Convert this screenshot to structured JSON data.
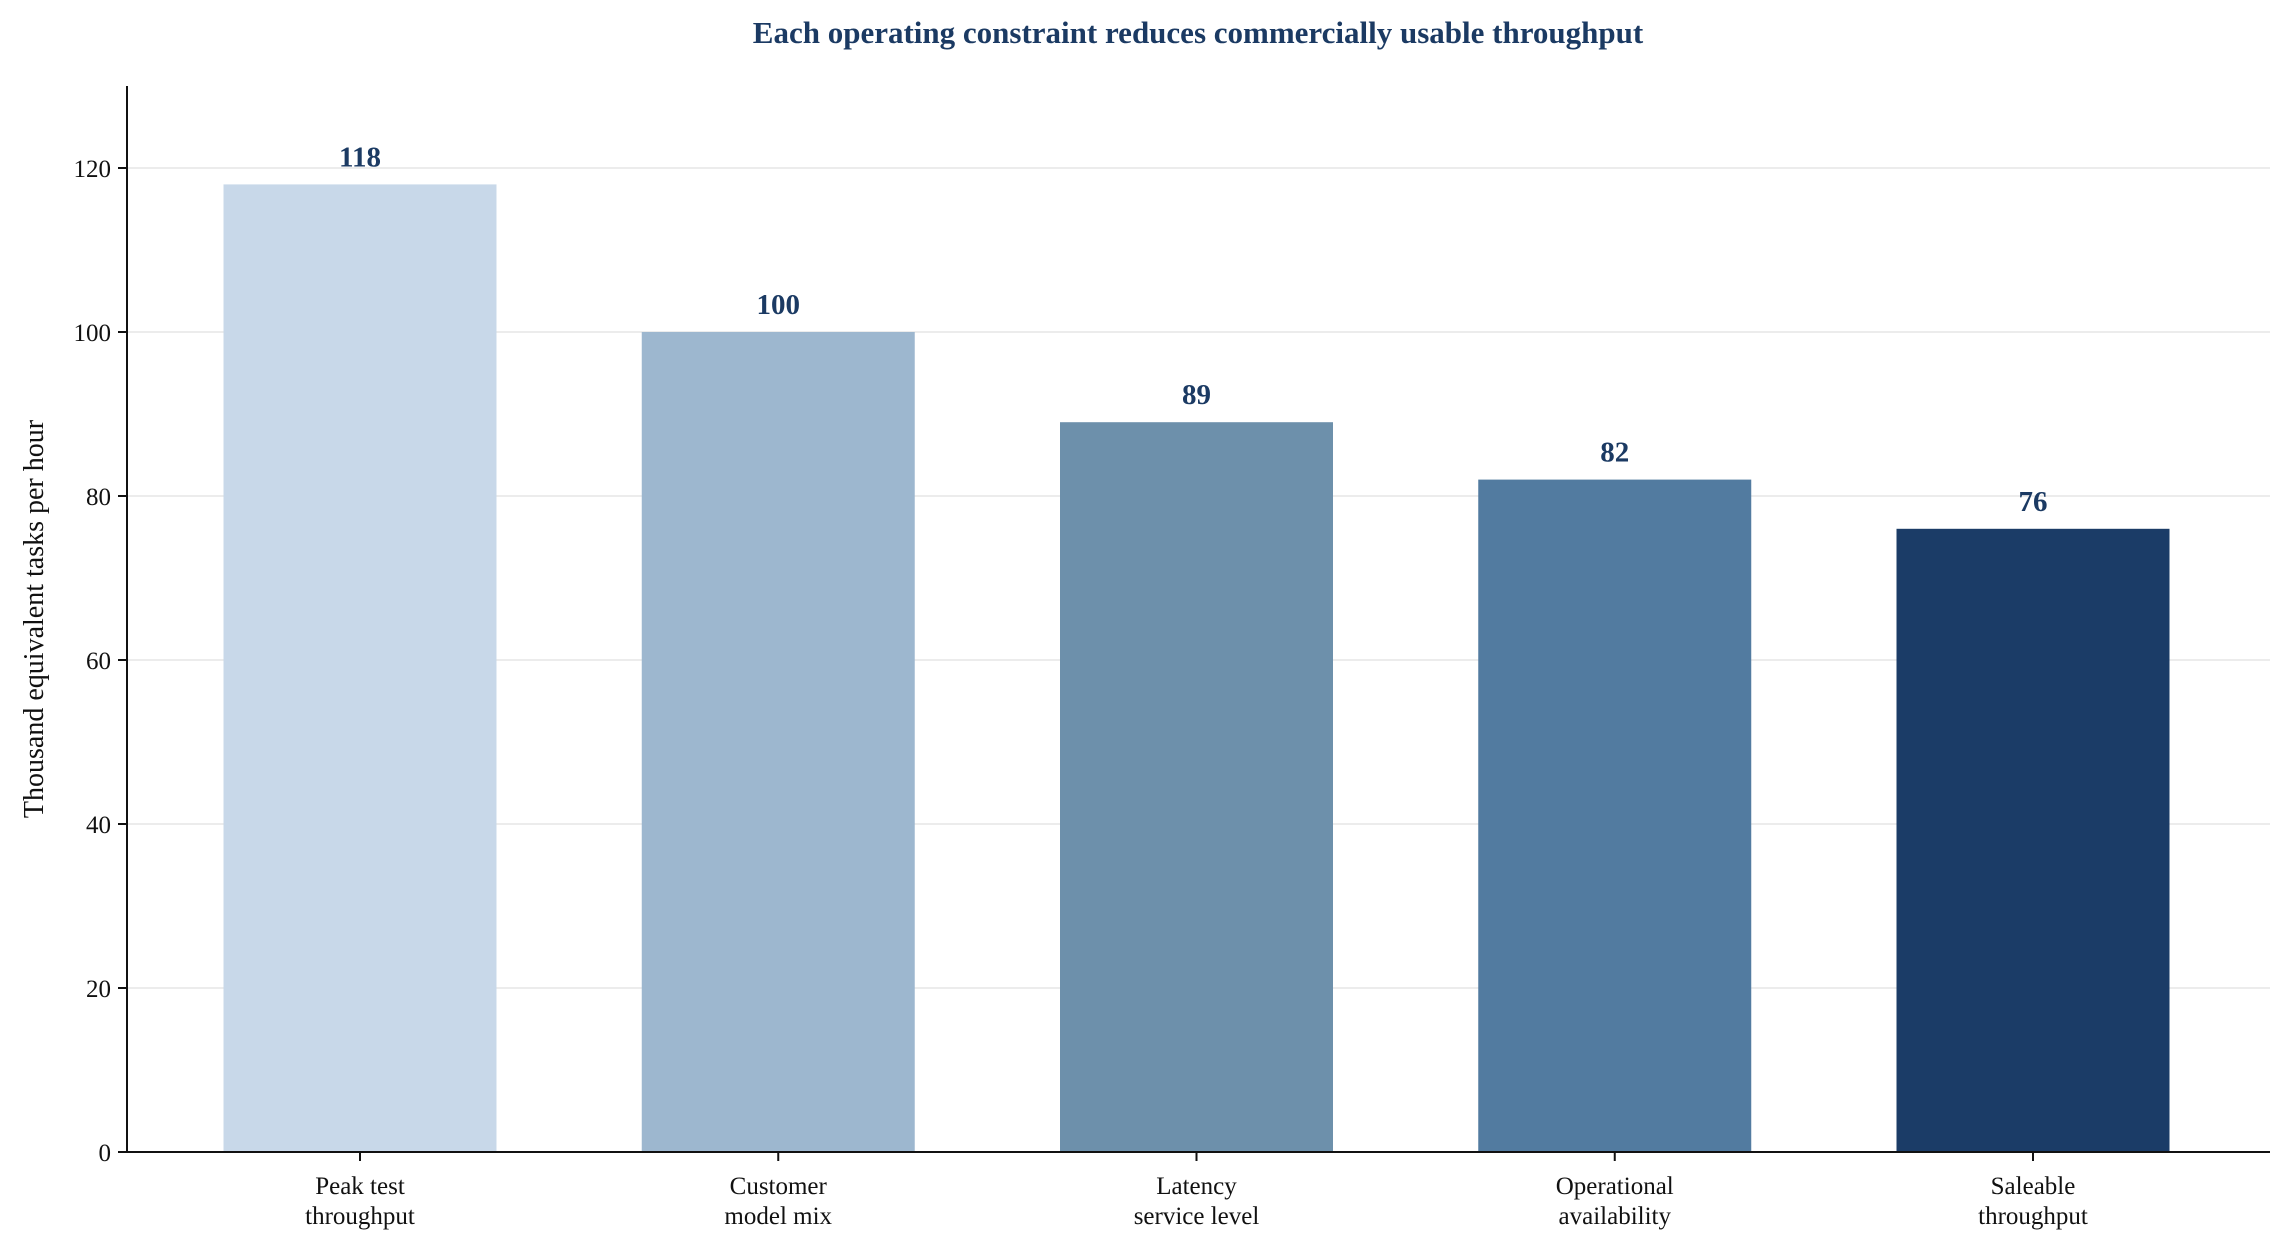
{
  "chart_data": {
    "type": "bar",
    "title": "Each operating constraint reduces commercially usable throughput",
    "xlabel": "",
    "ylabel": "Thousand equivalent tasks per hour",
    "categories": [
      [
        "Peak test",
        "throughput"
      ],
      [
        "Customer",
        "model mix"
      ],
      [
        "Latency",
        "service level"
      ],
      [
        "Operational",
        "availability"
      ],
      [
        "Saleable",
        "throughput"
      ]
    ],
    "values": [
      118,
      100,
      89,
      82,
      76
    ],
    "value_labels": [
      "118",
      "100",
      "89",
      "82",
      "76"
    ],
    "bar_colors": [
      "#c8d8e9",
      "#9db7cf",
      "#6d90ab",
      "#527ba0",
      "#1b3c67"
    ],
    "ylim": [
      0,
      130
    ],
    "yticks": [
      0,
      20,
      40,
      60,
      80,
      100,
      120
    ],
    "grid": "horizontal",
    "legend": "none"
  }
}
